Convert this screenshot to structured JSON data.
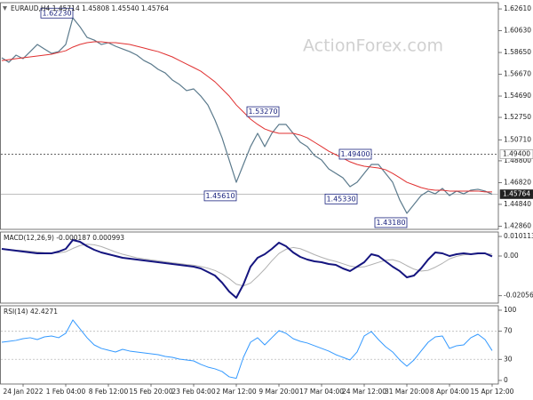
{
  "chart_data": [
    {
      "type": "line",
      "title": "EURAUD,H4  1.45714 1.45808 1.45540 1.45764",
      "watermark": "ActionForex.com",
      "ylim": [
        1.4257,
        1.6318
      ],
      "yticks": [
        {
          "value": 1.6261,
          "label": "1.62610"
        },
        {
          "value": 1.6063,
          "label": "1.60630"
        },
        {
          "value": 1.5865,
          "label": "1.58650"
        },
        {
          "value": 1.5667,
          "label": "1.56670"
        },
        {
          "value": 1.5469,
          "label": "1.54690"
        },
        {
          "value": 1.5275,
          "label": "1.52750"
        },
        {
          "value": 1.5071,
          "label": "1.50710"
        },
        {
          "value": 1.488,
          "label": "1.48800"
        },
        {
          "value": 1.4682,
          "label": "1.46820"
        },
        {
          "value": 1.4484,
          "label": "1.44840"
        },
        {
          "value": 1.4286,
          "label": "1.42860"
        }
      ],
      "hlines": [
        {
          "value": 1.494,
          "label": "1.49400",
          "style": "dotted"
        },
        {
          "value": 1.45764,
          "label": "1.45764",
          "style": "current"
        }
      ],
      "annotations": [
        {
          "value": 1.6223,
          "label": "1.62230",
          "x": 10
        },
        {
          "value": 1.5327,
          "label": "1.53270",
          "x": 39
        },
        {
          "value": 1.494,
          "label": "1.49400",
          "x": 52
        },
        {
          "value": 1.4561,
          "label": "1.45610",
          "x": 33
        },
        {
          "value": 1.4533,
          "label": "1.45330",
          "x": 50
        },
        {
          "value": 1.4318,
          "label": "1.43180",
          "x": 57
        }
      ],
      "series": [
        {
          "color": "#5b7a8c",
          "width": 1.2,
          "values": [
            1.5817,
            1.5776,
            1.5841,
            1.5809,
            1.5873,
            1.5938,
            1.5897,
            1.5857,
            1.5873,
            1.5938,
            1.618,
            1.6099,
            1.6002,
            1.5978,
            1.5938,
            1.5954,
            1.5922,
            1.5897,
            1.5873,
            1.5841,
            1.5792,
            1.576,
            1.5712,
            1.5679,
            1.5615,
            1.5574,
            1.5518,
            1.5534,
            1.5469,
            1.5388,
            1.5251,
            1.5089,
            1.4887,
            1.4685,
            1.4847,
            1.5009,
            1.513,
            1.5009,
            1.513,
            1.5211,
            1.5211,
            1.513,
            1.5049,
            1.5009,
            1.4928,
            1.4887,
            1.4807,
            1.4766,
            1.4726,
            1.4645,
            1.4685,
            1.4766,
            1.4847,
            1.4847,
            1.4766,
            1.4685,
            1.4524,
            1.4403,
            1.4483,
            1.4564,
            1.4605,
            1.458,
            1.4629,
            1.4564,
            1.4605,
            1.458,
            1.4613,
            1.4621,
            1.4605,
            1.4576
          ]
        },
        {
          "color": "#e03030",
          "width": 1,
          "values": [
            1.5792,
            1.58,
            1.5809,
            1.5817,
            1.5825,
            1.5833,
            1.5841,
            1.5849,
            1.5865,
            1.5881,
            1.5914,
            1.5938,
            1.5954,
            1.5962,
            1.5962,
            1.5954,
            1.5954,
            1.5946,
            1.5938,
            1.5922,
            1.5906,
            1.5889,
            1.5873,
            1.5849,
            1.5825,
            1.5792,
            1.576,
            1.5728,
            1.5695,
            1.5647,
            1.5598,
            1.5534,
            1.5469,
            1.5388,
            1.5324,
            1.5259,
            1.5211,
            1.517,
            1.5146,
            1.513,
            1.513,
            1.513,
            1.5114,
            1.5089,
            1.5049,
            1.5009,
            1.4968,
            1.4936,
            1.4904,
            1.4871,
            1.4847,
            1.4831,
            1.4823,
            1.4815,
            1.4799,
            1.4766,
            1.4726,
            1.4685,
            1.4661,
            1.4637,
            1.4621,
            1.4613,
            1.4613,
            1.4605,
            1.4605,
            1.4605,
            1.4605,
            1.4605,
            1.4597,
            1.4597
          ]
        }
      ]
    },
    {
      "type": "line",
      "title": "MACD(12,26,9) -0.000187 0.000993",
      "ylim": [
        -0.02438,
        0.01242
      ],
      "yticks": [
        0.010113,
        {
          "value": 0,
          "label": "0.00"
        },
        -0.020561
      ],
      "series": [
        {
          "color": "#b0b0b0",
          "width": 1,
          "values": [
            0.0035,
            0.0033,
            0.003,
            0.0028,
            0.0025,
            0.0021,
            0.0018,
            0.0016,
            0.0016,
            0.0022,
            0.0039,
            0.0054,
            0.0061,
            0.0058,
            0.0049,
            0.0035,
            0.0021,
            0.0009,
            0,
            -0.0009,
            -0.0015,
            -0.002,
            -0.0025,
            -0.003,
            -0.0035,
            -0.0039,
            -0.0044,
            -0.0048,
            -0.0054,
            -0.0063,
            -0.0075,
            -0.0093,
            -0.0117,
            -0.0146,
            -0.0155,
            -0.014,
            -0.0106,
            -0.0068,
            -0.0025,
            0.0013,
            0.0035,
            0.0044,
            0.0038,
            0.0023,
            0.0007,
            -0.0007,
            -0.0019,
            -0.0028,
            -0.004,
            -0.0052,
            -0.0058,
            -0.0056,
            -0.0045,
            -0.0033,
            -0.0022,
            -0.0019,
            -0.003,
            -0.005,
            -0.0068,
            -0.0078,
            -0.0074,
            -0.0058,
            -0.0038,
            -0.0015,
            -0.0002,
            0.0006,
            0.001,
            0.0011,
            0.0012,
            0.00099
          ]
        },
        {
          "color": "#15157f",
          "width": 2,
          "values": [
            0.00368,
            0.00322,
            0.00276,
            0.0023,
            0.00184,
            0.00138,
            0.00138,
            0.00138,
            0.0023,
            0.00368,
            0.00828,
            0.00736,
            0.00506,
            0.00322,
            0.00184,
            0.00092,
            0,
            -0.00092,
            -0.00138,
            -0.00184,
            -0.0023,
            -0.00276,
            -0.00322,
            -0.00368,
            -0.00414,
            -0.0046,
            -0.00506,
            -0.00552,
            -0.00644,
            -0.00828,
            -0.01012,
            -0.0138,
            -0.0184,
            -0.02162,
            -0.01472,
            -0.00552,
            -0.00092,
            0.00092,
            0.00368,
            0.0069,
            0.00506,
            0.00184,
            -0.00046,
            -0.00184,
            -0.00276,
            -0.00322,
            -0.00414,
            -0.0046,
            -0.00644,
            -0.0078,
            -0.00552,
            -0.00322,
            0.00092,
            0,
            -0.00276,
            -0.00552,
            -0.0078,
            -0.01104,
            -0.01012,
            -0.00644,
            -0.00184,
            0.00184,
            0.00138,
            0,
            0.00092,
            0.00138,
            0.00092,
            0.00138,
            0.00138,
            -0.00019
          ]
        }
      ]
    },
    {
      "type": "line",
      "title": "RSI(14) 42.4271",
      "ylim": [
        -5.1,
        106.3
      ],
      "yticks": [
        100,
        70,
        30,
        0
      ],
      "categories": [
        null,
        null,
        null,
        "24 Jan 2022",
        null,
        null,
        null,
        null,
        null,
        "1 Feb 04:00",
        null,
        null,
        null,
        null,
        null,
        "8 Feb 12:00",
        null,
        null,
        null,
        null,
        null,
        "15 Feb 20:00",
        null,
        null,
        null,
        null,
        null,
        "23 Feb 04:00",
        null,
        null,
        null,
        null,
        null,
        "2 Mar 12:00",
        null,
        null,
        null,
        null,
        null,
        "9 Mar 20:00",
        null,
        null,
        null,
        null,
        null,
        "17 Mar 04:00",
        null,
        null,
        null,
        null,
        null,
        "24 Mar 12:00",
        null,
        null,
        null,
        null,
        null,
        "31 Mar 20:00",
        null,
        null,
        null,
        null,
        null,
        "8 Apr 04:00",
        null,
        null,
        null,
        null,
        null,
        "15 Apr 12:00"
      ],
      "series": [
        {
          "color": "#3399ff",
          "width": 1,
          "values": [
            54.4,
            55.7,
            57.0,
            59.5,
            60.8,
            58.2,
            62.0,
            63.3,
            60.8,
            67.1,
            86.1,
            73.4,
            60.8,
            50.6,
            45.6,
            43.0,
            40.5,
            44.3,
            41.8,
            40.5,
            39.2,
            38.0,
            36.7,
            34.2,
            32.9,
            30.4,
            29.1,
            27.8,
            22.8,
            19.0,
            16.5,
            12.7,
            5.1,
            3.0,
            32.9,
            54.4,
            60.8,
            50.6,
            60.8,
            70.9,
            67.1,
            59.5,
            55.7,
            53.2,
            49.4,
            45.6,
            41.8,
            36.7,
            32.9,
            29.1,
            40.5,
            63.3,
            69.6,
            58.2,
            48.1,
            40.5,
            29.1,
            20.3,
            29.1,
            41.8,
            54.4,
            62.0,
            63.3,
            45.6,
            49.4,
            50.6,
            60.8,
            65.8,
            58.2,
            42.43
          ]
        }
      ]
    }
  ]
}
